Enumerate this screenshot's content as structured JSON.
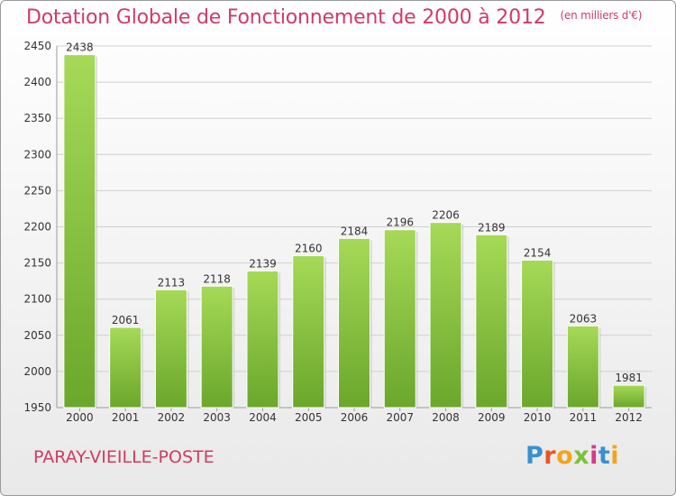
{
  "header": {
    "title": "Dotation Globale de Fonctionnement de 2000 à 2012",
    "unit": "(en milliers d'€)"
  },
  "footer": {
    "place": "PARAY-VIEILLE-POSTE",
    "logo_letters": [
      "P",
      "r",
      "o",
      "x",
      "i",
      "t",
      "i"
    ],
    "logo_colors": [
      "#3a8fd1",
      "#e8571f",
      "#f2a51b",
      "#7cc03a",
      "#d63a8b",
      "#3a8fd1",
      "#f2a51b"
    ]
  },
  "chart_data": {
    "type": "bar",
    "title": "Dotation Globale de Fonctionnement de 2000 à 2012",
    "subtitle": "(en milliers d'€)",
    "categories": [
      "2000",
      "2001",
      "2002",
      "2003",
      "2004",
      "2005",
      "2006",
      "2007",
      "2008",
      "2009",
      "2010",
      "2011",
      "2012"
    ],
    "values": [
      2438,
      2061,
      2113,
      2118,
      2139,
      2160,
      2184,
      2196,
      2206,
      2189,
      2154,
      2063,
      1981
    ],
    "ylim": [
      1950,
      2450
    ],
    "yticks": [
      1950,
      2000,
      2050,
      2100,
      2150,
      2200,
      2250,
      2300,
      2350,
      2400,
      2450
    ],
    "grid": true,
    "legend": "none",
    "bar_color": "#8ac43f",
    "bar_color_light": "#a6d957",
    "bar_color_dark": "#6aa72b"
  }
}
